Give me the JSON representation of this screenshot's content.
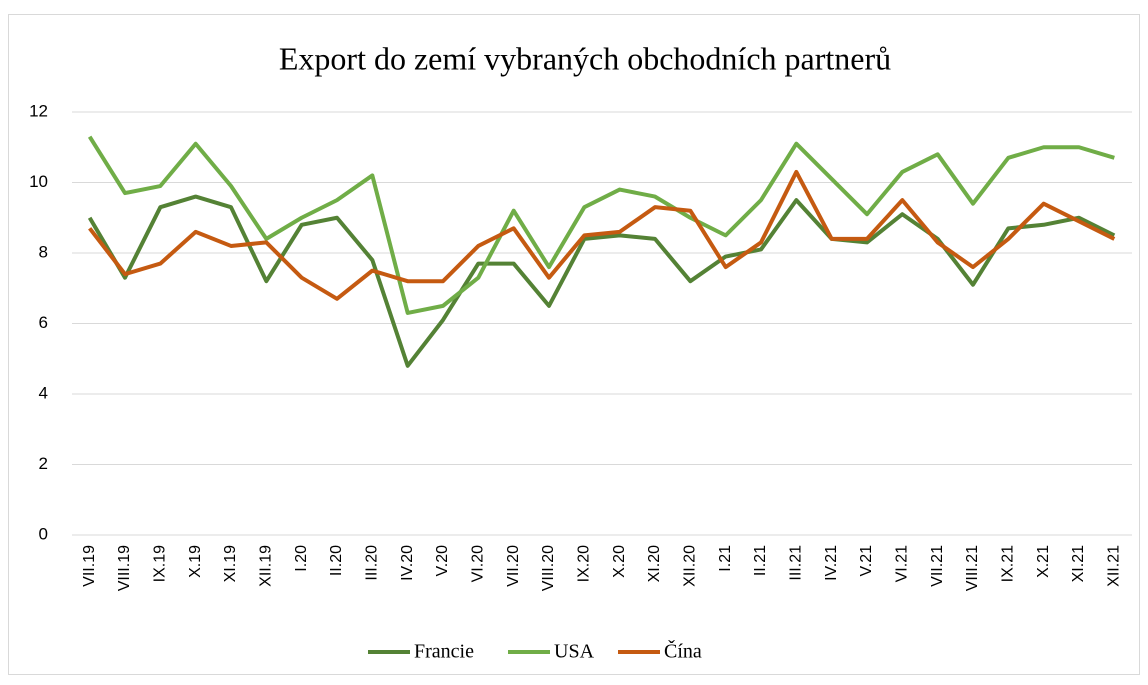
{
  "chart_data": {
    "type": "line",
    "title": "Export do zemí vybraných obchodních partnerů",
    "categories": [
      "VII.19",
      "VIII.19",
      "IX.19",
      "X.19",
      "XI.19",
      "XII.19",
      "I.20",
      "II.20",
      "III.20",
      "IV.20",
      "V.20",
      "VI.20",
      "VII.20",
      "VIII.20",
      "IX.20",
      "X.20",
      "XI.20",
      "XII.20",
      "I.21",
      "II.21",
      "III.21",
      "IV.21",
      "V.21",
      "VI.21",
      "VII.21",
      "VIII.21",
      "IX.21",
      "X.21",
      "XI.21",
      "XII.21"
    ],
    "series": [
      {
        "name": "Francie",
        "color": "#548235",
        "values": [
          9.0,
          7.3,
          9.3,
          9.6,
          9.3,
          7.2,
          8.8,
          9.0,
          7.8,
          4.8,
          6.1,
          7.7,
          7.7,
          6.5,
          8.4,
          8.5,
          8.4,
          7.2,
          7.9,
          8.1,
          9.5,
          8.4,
          8.3,
          9.1,
          8.4,
          7.1,
          8.7,
          8.8,
          9.0,
          8.5
        ]
      },
      {
        "name": "USA",
        "color": "#70ad47",
        "values": [
          11.3,
          9.7,
          9.9,
          11.1,
          9.9,
          8.4,
          9.0,
          9.5,
          10.2,
          6.3,
          6.5,
          7.3,
          9.2,
          7.6,
          9.3,
          9.8,
          9.6,
          9.0,
          8.5,
          9.5,
          11.1,
          10.1,
          9.1,
          10.3,
          10.8,
          9.4,
          10.7,
          11.0,
          11.0,
          10.7
        ]
      },
      {
        "name": "Čína",
        "color": "#c55a11",
        "values": [
          8.7,
          7.4,
          7.7,
          8.6,
          8.2,
          8.3,
          7.3,
          6.7,
          7.5,
          7.2,
          7.2,
          8.2,
          8.7,
          7.3,
          8.5,
          8.6,
          9.3,
          9.2,
          7.6,
          8.3,
          10.3,
          8.4,
          8.4,
          9.5,
          8.3,
          7.6,
          8.4,
          9.4,
          8.9,
          8.4
        ]
      }
    ],
    "ylim": [
      0,
      12
    ],
    "yticks": [
      0,
      2,
      4,
      6,
      8,
      10,
      12
    ],
    "grid": true,
    "legend": "bottom"
  }
}
